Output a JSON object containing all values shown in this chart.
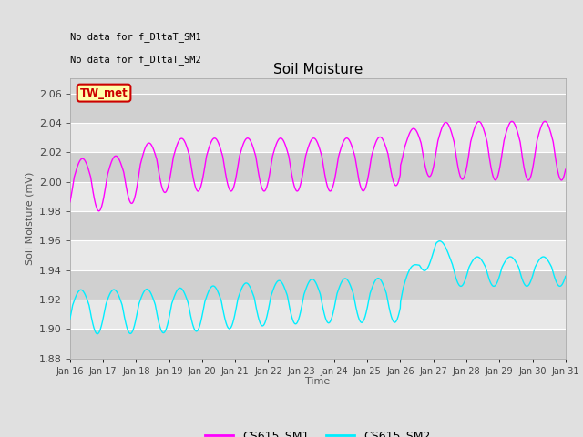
{
  "title": "Soil Moisture",
  "ylabel": "Soil Moisture (mV)",
  "xlabel": "Time",
  "ylim": [
    1.88,
    2.07
  ],
  "no_data_text1": "No data for f_DltaT_SM1",
  "no_data_text2": "No data for f_DltaT_SM2",
  "tw_met_label": "TW_met",
  "legend_labels": [
    "CS615_SM1",
    "CS615_SM2"
  ],
  "sm1_color": "#FF00FF",
  "sm2_color": "#00EEFF",
  "fig_bg_color": "#E0E0E0",
  "plot_bg_color": "#D8D8D8",
  "band_light": "#E8E8E8",
  "band_dark": "#D0D0D0",
  "tw_met_box_color": "#FFFFAA",
  "tw_met_text_color": "#CC0000",
  "tw_met_border_color": "#CC0000",
  "x_tick_labels": [
    "Jan 16",
    "Jan 17",
    "Jan 18",
    "Jan 19",
    "Jan 20",
    "Jan 21",
    "Jan 22",
    "Jan 23",
    "Jan 24",
    "Jan 25",
    "Jan 26",
    "Jan 27",
    "Jan 28",
    "Jan 29",
    "Jan 30",
    "Jan 31"
  ],
  "yticks": [
    1.88,
    1.9,
    1.92,
    1.94,
    1.96,
    1.98,
    2.0,
    2.02,
    2.04,
    2.06
  ]
}
